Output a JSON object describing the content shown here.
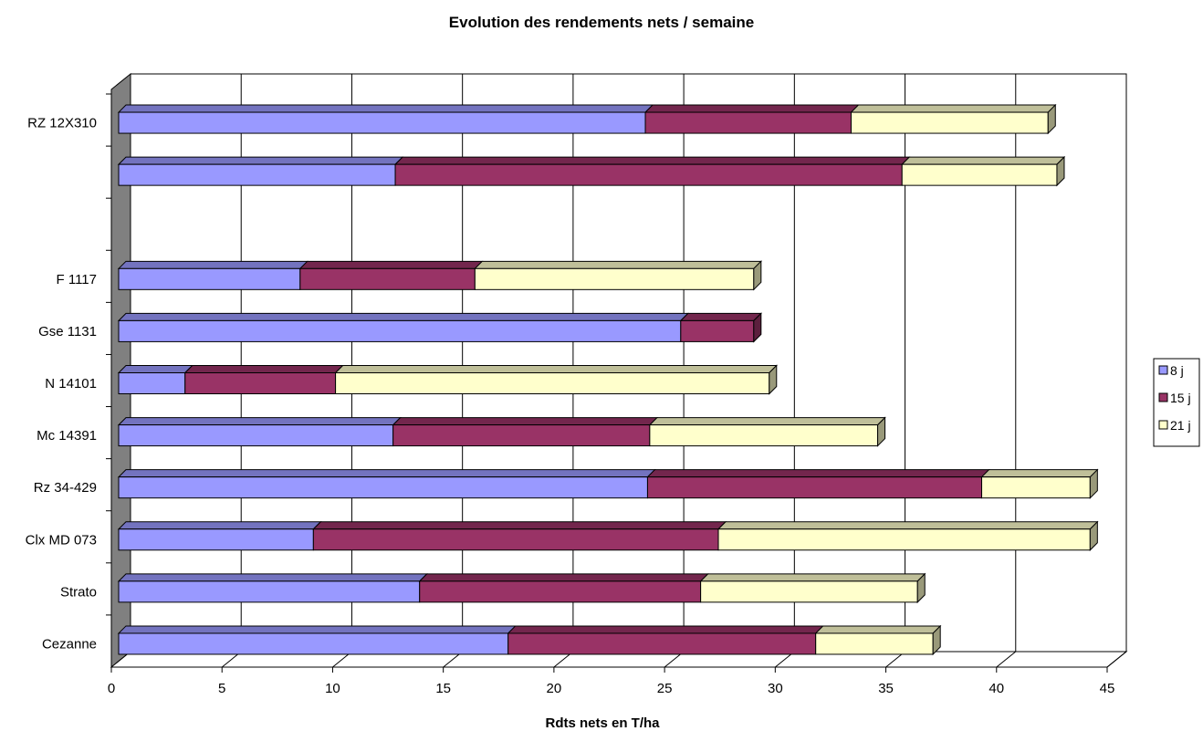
{
  "chart_data": {
    "type": "bar",
    "orientation": "horizontal",
    "stacked": true,
    "three_d": true,
    "title": "Evolution des rendements nets / semaine",
    "xlabel": "Rdts nets en T/ha",
    "ylabel": "",
    "xlim": [
      0,
      45
    ],
    "xticks": [
      "0",
      "5",
      "10",
      "15",
      "20",
      "25",
      "30",
      "35",
      "40",
      "45"
    ],
    "grid": true,
    "legend_position": "right",
    "categories": [
      "RZ 12X310",
      "",
      "",
      "F 1117",
      "Gse 1131",
      "N 14101",
      "Mc 14391",
      "Rz 34-429",
      "Clx MD 073",
      "Strato",
      "Cezanne"
    ],
    "series": [
      {
        "name": "8 j",
        "color": "#9999ff",
        "values": [
          23.8,
          12.5,
          null,
          8.2,
          25.4,
          3.0,
          12.4,
          23.9,
          8.8,
          13.6,
          17.6
        ]
      },
      {
        "name": "15 j",
        "color": "#993366",
        "values": [
          9.3,
          22.9,
          null,
          7.9,
          3.3,
          6.8,
          11.6,
          15.1,
          18.3,
          12.7,
          13.9
        ]
      },
      {
        "name": "21 j",
        "color": "#ffffcc",
        "values": [
          8.9,
          7.0,
          null,
          12.6,
          0,
          19.6,
          10.3,
          4.9,
          16.8,
          9.8,
          5.3
        ]
      }
    ]
  }
}
